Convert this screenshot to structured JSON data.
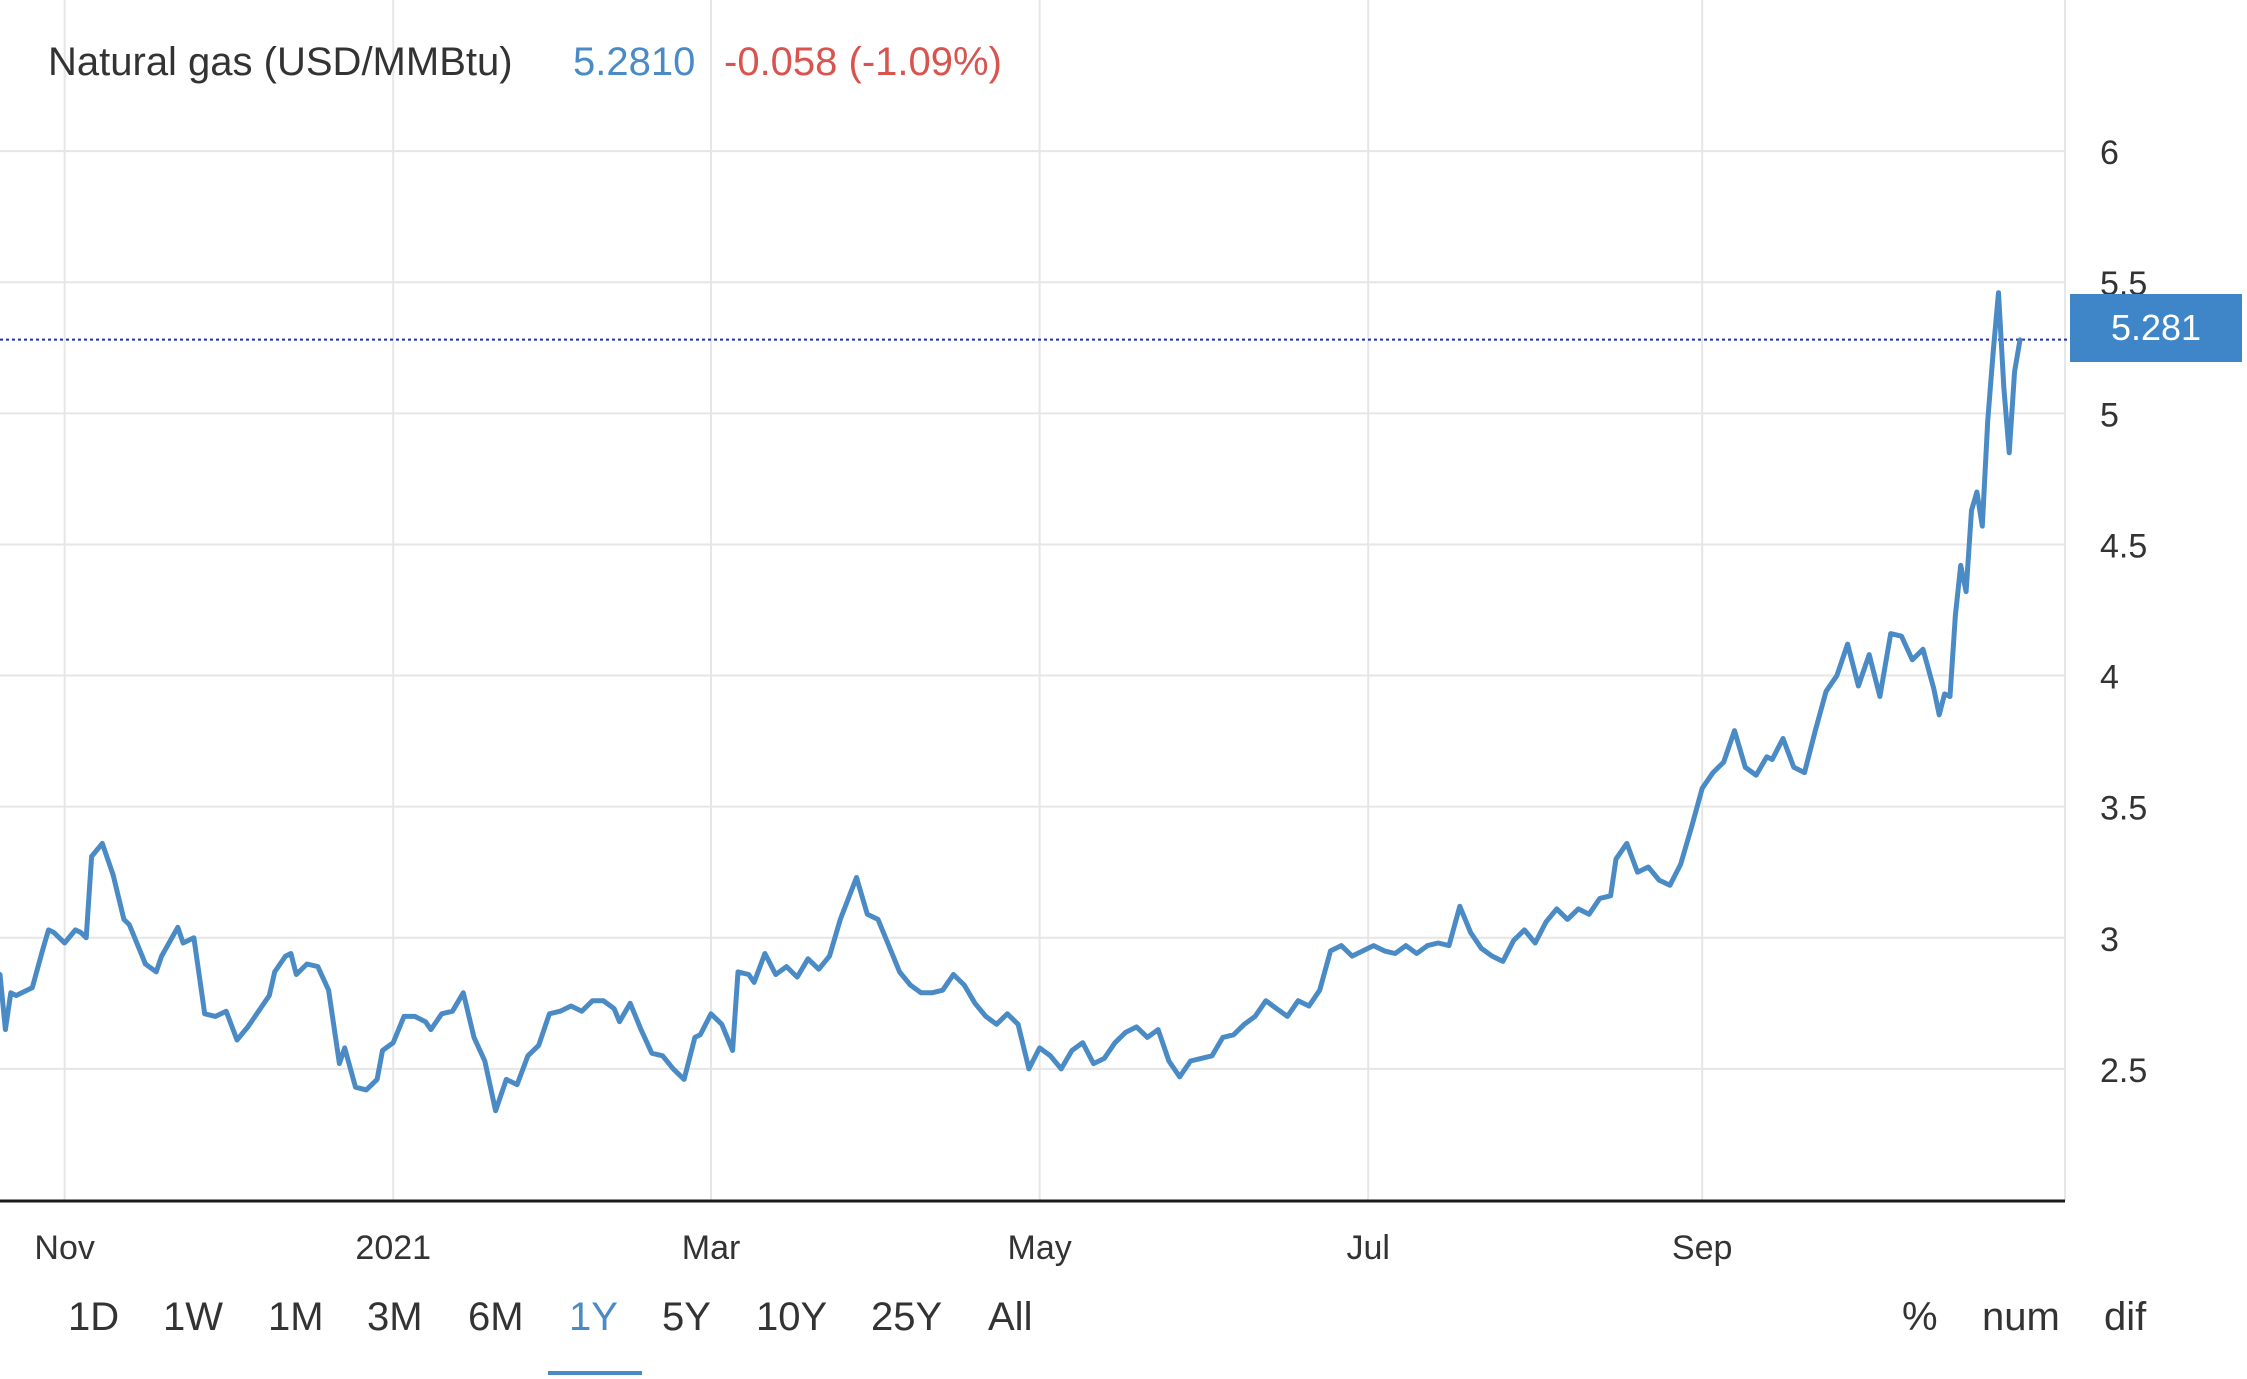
{
  "header": {
    "name": "Natural gas (USD/MMBtu)",
    "price": "5.2810",
    "change": "-0.058 (-1.09%)"
  },
  "price_tag": "5.281",
  "ranges": [
    "1D",
    "1W",
    "1M",
    "3M",
    "6M",
    "1Y",
    "5Y",
    "10Y",
    "25Y",
    "All"
  ],
  "active_range": "1Y",
  "modes": [
    "%",
    "num",
    "dif"
  ],
  "colors": {
    "line": "#4a8bc6",
    "negative": "#d9534f",
    "price_line": "#1f2fb5",
    "tag": "#3f86c8"
  },
  "chart_data": {
    "type": "line",
    "title": "Natural gas (USD/MMBtu)",
    "x_ticks": [
      "Nov",
      "2021",
      "Mar",
      "May",
      "Jul",
      "Sep"
    ],
    "x_tick_dates": [
      "2020-11-01",
      "2021-01-01",
      "2021-03-01",
      "2021-05-01",
      "2021-07-01",
      "2021-09-01"
    ],
    "x_range": [
      "2020-10-20",
      "2021-10-30"
    ],
    "y_ticks": [
      2.5,
      3,
      3.5,
      4,
      4.5,
      5,
      5.5,
      6
    ],
    "ylim": [
      2.0,
      6.5
    ],
    "grid": true,
    "last_value": 5.281,
    "series": [
      {
        "values": [
          [
            "2020-10-20",
            2.86
          ],
          [
            "2020-10-21",
            2.65
          ],
          [
            "2020-10-22",
            2.79
          ],
          [
            "2020-10-23",
            2.78
          ],
          [
            "2020-10-26",
            2.81
          ],
          [
            "2020-10-28",
            2.96
          ],
          [
            "2020-10-29",
            3.03
          ],
          [
            "2020-10-30",
            3.02
          ],
          [
            "2020-11-01",
            2.98
          ],
          [
            "2020-11-03",
            3.03
          ],
          [
            "2020-11-04",
            3.02
          ],
          [
            "2020-11-05",
            3.0
          ],
          [
            "2020-11-06",
            3.31
          ],
          [
            "2020-11-08",
            3.36
          ],
          [
            "2020-11-10",
            3.24
          ],
          [
            "2020-11-12",
            3.07
          ],
          [
            "2020-11-13",
            3.05
          ],
          [
            "2020-11-15",
            2.95
          ],
          [
            "2020-11-16",
            2.9
          ],
          [
            "2020-11-18",
            2.87
          ],
          [
            "2020-11-19",
            2.93
          ],
          [
            "2020-11-22",
            3.04
          ],
          [
            "2020-11-23",
            2.98
          ],
          [
            "2020-11-25",
            3.0
          ],
          [
            "2020-11-27",
            2.71
          ],
          [
            "2020-11-29",
            2.7
          ],
          [
            "2020-12-01",
            2.72
          ],
          [
            "2020-12-03",
            2.61
          ],
          [
            "2020-12-05",
            2.66
          ],
          [
            "2020-12-07",
            2.72
          ],
          [
            "2020-12-09",
            2.78
          ],
          [
            "2020-12-10",
            2.87
          ],
          [
            "2020-12-12",
            2.93
          ],
          [
            "2020-12-13",
            2.94
          ],
          [
            "2020-12-14",
            2.86
          ],
          [
            "2020-12-16",
            2.9
          ],
          [
            "2020-12-18",
            2.89
          ],
          [
            "2020-12-20",
            2.8
          ],
          [
            "2020-12-22",
            2.52
          ],
          [
            "2020-12-23",
            2.58
          ],
          [
            "2020-12-25",
            2.43
          ],
          [
            "2020-12-27",
            2.42
          ],
          [
            "2020-12-29",
            2.46
          ],
          [
            "2020-12-30",
            2.57
          ],
          [
            "2021-01-01",
            2.6
          ],
          [
            "2021-01-03",
            2.7
          ],
          [
            "2021-01-05",
            2.7
          ],
          [
            "2021-01-07",
            2.68
          ],
          [
            "2021-01-08",
            2.65
          ],
          [
            "2021-01-10",
            2.71
          ],
          [
            "2021-01-12",
            2.72
          ],
          [
            "2021-01-14",
            2.79
          ],
          [
            "2021-01-16",
            2.62
          ],
          [
            "2021-01-18",
            2.53
          ],
          [
            "2021-01-20",
            2.34
          ],
          [
            "2021-01-22",
            2.46
          ],
          [
            "2021-01-24",
            2.44
          ],
          [
            "2021-01-26",
            2.55
          ],
          [
            "2021-01-28",
            2.59
          ],
          [
            "2021-01-30",
            2.71
          ],
          [
            "2021-02-01",
            2.72
          ],
          [
            "2021-02-03",
            2.74
          ],
          [
            "2021-02-05",
            2.72
          ],
          [
            "2021-02-07",
            2.76
          ],
          [
            "2021-02-09",
            2.76
          ],
          [
            "2021-02-11",
            2.73
          ],
          [
            "2021-02-12",
            2.68
          ],
          [
            "2021-02-14",
            2.75
          ],
          [
            "2021-02-16",
            2.65
          ],
          [
            "2021-02-18",
            2.56
          ],
          [
            "2021-02-20",
            2.55
          ],
          [
            "2021-02-22",
            2.5
          ],
          [
            "2021-02-24",
            2.46
          ],
          [
            "2021-02-26",
            2.62
          ],
          [
            "2021-02-27",
            2.63
          ],
          [
            "2021-03-01",
            2.71
          ],
          [
            "2021-03-03",
            2.67
          ],
          [
            "2021-03-05",
            2.57
          ],
          [
            "2021-03-06",
            2.87
          ],
          [
            "2021-03-08",
            2.86
          ],
          [
            "2021-03-09",
            2.83
          ],
          [
            "2021-03-11",
            2.94
          ],
          [
            "2021-03-13",
            2.86
          ],
          [
            "2021-03-15",
            2.89
          ],
          [
            "2021-03-17",
            2.85
          ],
          [
            "2021-03-19",
            2.92
          ],
          [
            "2021-03-21",
            2.88
          ],
          [
            "2021-03-23",
            2.93
          ],
          [
            "2021-03-25",
            3.07
          ],
          [
            "2021-03-28",
            3.23
          ],
          [
            "2021-03-30",
            3.09
          ],
          [
            "2021-04-01",
            3.07
          ],
          [
            "2021-04-03",
            2.97
          ],
          [
            "2021-04-05",
            2.87
          ],
          [
            "2021-04-07",
            2.82
          ],
          [
            "2021-04-09",
            2.79
          ],
          [
            "2021-04-11",
            2.79
          ],
          [
            "2021-04-13",
            2.8
          ],
          [
            "2021-04-15",
            2.86
          ],
          [
            "2021-04-17",
            2.82
          ],
          [
            "2021-04-19",
            2.75
          ],
          [
            "2021-04-21",
            2.7
          ],
          [
            "2021-04-23",
            2.67
          ],
          [
            "2021-04-25",
            2.71
          ],
          [
            "2021-04-27",
            2.67
          ],
          [
            "2021-04-29",
            2.5
          ],
          [
            "2021-05-01",
            2.58
          ],
          [
            "2021-05-03",
            2.55
          ],
          [
            "2021-05-05",
            2.5
          ],
          [
            "2021-05-07",
            2.57
          ],
          [
            "2021-05-09",
            2.6
          ],
          [
            "2021-05-11",
            2.52
          ],
          [
            "2021-05-13",
            2.54
          ],
          [
            "2021-05-15",
            2.6
          ],
          [
            "2021-05-17",
            2.64
          ],
          [
            "2021-05-19",
            2.66
          ],
          [
            "2021-05-21",
            2.62
          ],
          [
            "2021-05-23",
            2.65
          ],
          [
            "2021-05-25",
            2.53
          ],
          [
            "2021-05-27",
            2.47
          ],
          [
            "2021-05-29",
            2.53
          ],
          [
            "2021-05-31",
            2.54
          ],
          [
            "2021-06-02",
            2.55
          ],
          [
            "2021-06-04",
            2.62
          ],
          [
            "2021-06-06",
            2.63
          ],
          [
            "2021-06-08",
            2.67
          ],
          [
            "2021-06-10",
            2.7
          ],
          [
            "2021-06-12",
            2.76
          ],
          [
            "2021-06-14",
            2.73
          ],
          [
            "2021-06-16",
            2.7
          ],
          [
            "2021-06-18",
            2.76
          ],
          [
            "2021-06-20",
            2.74
          ],
          [
            "2021-06-22",
            2.8
          ],
          [
            "2021-06-24",
            2.95
          ],
          [
            "2021-06-26",
            2.97
          ],
          [
            "2021-06-28",
            2.93
          ],
          [
            "2021-06-30",
            2.95
          ],
          [
            "2021-07-02",
            2.97
          ],
          [
            "2021-07-04",
            2.95
          ],
          [
            "2021-07-06",
            2.94
          ],
          [
            "2021-07-08",
            2.97
          ],
          [
            "2021-07-10",
            2.94
          ],
          [
            "2021-07-12",
            2.97
          ],
          [
            "2021-07-14",
            2.98
          ],
          [
            "2021-07-16",
            2.97
          ],
          [
            "2021-07-18",
            3.12
          ],
          [
            "2021-07-20",
            3.02
          ],
          [
            "2021-07-22",
            2.96
          ],
          [
            "2021-07-24",
            2.93
          ],
          [
            "2021-07-26",
            2.91
          ],
          [
            "2021-07-28",
            2.99
          ],
          [
            "2021-07-30",
            3.03
          ],
          [
            "2021-08-01",
            2.98
          ],
          [
            "2021-08-03",
            3.06
          ],
          [
            "2021-08-05",
            3.11
          ],
          [
            "2021-08-07",
            3.07
          ],
          [
            "2021-08-09",
            3.11
          ],
          [
            "2021-08-11",
            3.09
          ],
          [
            "2021-08-13",
            3.15
          ],
          [
            "2021-08-15",
            3.16
          ],
          [
            "2021-08-16",
            3.3
          ],
          [
            "2021-08-18",
            3.36
          ],
          [
            "2021-08-20",
            3.25
          ],
          [
            "2021-08-22",
            3.27
          ],
          [
            "2021-08-24",
            3.22
          ],
          [
            "2021-08-26",
            3.2
          ],
          [
            "2021-08-28",
            3.28
          ],
          [
            "2021-08-30",
            3.42
          ],
          [
            "2021-09-01",
            3.57
          ],
          [
            "2021-09-03",
            3.63
          ],
          [
            "2021-09-05",
            3.67
          ],
          [
            "2021-09-07",
            3.79
          ],
          [
            "2021-09-09",
            3.65
          ],
          [
            "2021-09-11",
            3.62
          ],
          [
            "2021-09-13",
            3.69
          ],
          [
            "2021-09-14",
            3.68
          ],
          [
            "2021-09-16",
            3.76
          ],
          [
            "2021-09-18",
            3.65
          ],
          [
            "2021-09-20",
            3.63
          ],
          [
            "2021-09-22",
            3.79
          ],
          [
            "2021-09-24",
            3.94
          ],
          [
            "2021-09-26",
            4.0
          ],
          [
            "2021-09-28",
            4.12
          ],
          [
            "2021-09-30",
            3.96
          ],
          [
            "2021-10-02",
            4.08
          ],
          [
            "2021-10-04",
            3.92
          ],
          [
            "2021-10-06",
            4.16
          ],
          [
            "2021-10-08",
            4.15
          ],
          [
            "2021-10-10",
            4.06
          ],
          [
            "2021-10-12",
            4.1
          ],
          [
            "2021-10-14",
            3.95
          ],
          [
            "2021-10-15",
            3.85
          ],
          [
            "2021-10-16",
            3.93
          ],
          [
            "2021-10-17",
            3.92
          ],
          [
            "2021-10-18",
            4.23
          ],
          [
            "2021-10-19",
            4.42
          ],
          [
            "2021-10-20",
            4.32
          ],
          [
            "2021-10-21",
            4.63
          ],
          [
            "2021-10-22",
            4.7
          ],
          [
            "2021-10-23",
            4.57
          ],
          [
            "2021-10-24",
            4.97
          ],
          [
            "2021-10-25",
            5.23
          ],
          [
            "2021-10-26",
            5.46
          ],
          [
            "2021-10-27",
            5.1
          ],
          [
            "2021-10-28",
            4.85
          ],
          [
            "2021-10-29",
            5.16
          ],
          [
            "2021-10-30",
            5.28
          ]
        ]
      }
    ]
  }
}
